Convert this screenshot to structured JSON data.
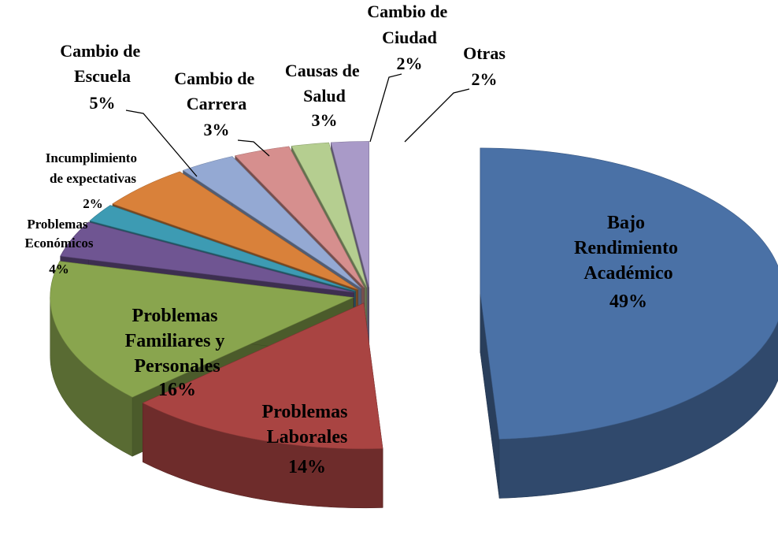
{
  "chart_data": {
    "type": "pie",
    "categories": [
      "Bajo Rendimiento Académico",
      "Problemas Laborales",
      "Problemas Familiares y Personales",
      "Problemas Económicos",
      "Incumplimiento de expectativas",
      "Cambio de Escuela",
      "Cambio de Carrera",
      "Causas de Salud",
      "Cambio de Ciudad",
      "Otras"
    ],
    "values": [
      49,
      14,
      16,
      4,
      2,
      5,
      3,
      3,
      2,
      2
    ],
    "value_labels": [
      "49%",
      "14%",
      "16%",
      "4%",
      "2%",
      "5%",
      "3%",
      "3%",
      "2%",
      "2%"
    ],
    "colors": [
      "#4a71a6",
      "#a94442",
      "#89a54e",
      "#6f5592",
      "#3d9bb3",
      "#d9813a",
      "#94a9d3",
      "#d68f8e",
      "#b5ce90",
      "#a99ac8"
    ],
    "three_d": true
  }
}
